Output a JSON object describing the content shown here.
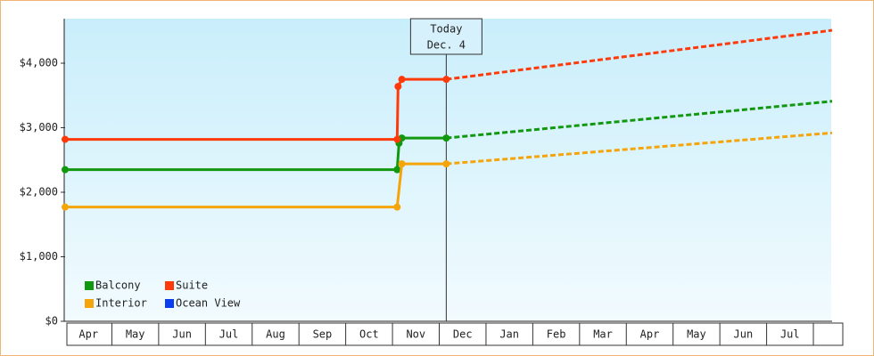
{
  "chart_data": {
    "type": "line",
    "xlim": [
      0,
      16.4
    ],
    "xticks": [
      {
        "value": 0.5,
        "label": "Apr"
      },
      {
        "value": 1.5,
        "label": "May"
      },
      {
        "value": 2.5,
        "label": "Jun"
      },
      {
        "value": 3.5,
        "label": "Jul"
      },
      {
        "value": 4.5,
        "label": "Aug"
      },
      {
        "value": 5.5,
        "label": "Sep"
      },
      {
        "value": 6.5,
        "label": "Oct"
      },
      {
        "value": 7.5,
        "label": "Nov"
      },
      {
        "value": 8.5,
        "label": "Dec"
      },
      {
        "value": 9.5,
        "label": "Jan"
      },
      {
        "value": 10.5,
        "label": "Feb"
      },
      {
        "value": 11.5,
        "label": "Mar"
      },
      {
        "value": 12.5,
        "label": "Apr"
      },
      {
        "value": 13.5,
        "label": "May"
      },
      {
        "value": 14.5,
        "label": "Jun"
      },
      {
        "value": 15.5,
        "label": "Jul"
      }
    ],
    "ylim": [
      0,
      4690
    ],
    "yticks": [
      {
        "value": 0,
        "label": "$0"
      },
      {
        "value": 1000,
        "label": "$1,000"
      },
      {
        "value": 2000,
        "label": "$2,000"
      },
      {
        "value": 3000,
        "label": "$3,000"
      },
      {
        "value": 4000,
        "label": "$4,000"
      }
    ],
    "today": {
      "x": 8.15,
      "label": [
        "Today",
        "Dec. 4"
      ]
    },
    "legend": "lower left",
    "series": [
      {
        "name": "Balcony",
        "color": "#12980f",
        "x": [
          0,
          7.1,
          7.14,
          7.2,
          8.15
        ],
        "values": [
          2350,
          2350,
          2760,
          2840,
          2840
        ],
        "forecast": {
          "x": [
            8.15,
            16.4
          ],
          "values": [
            2840,
            3410
          ]
        }
      },
      {
        "name": "Suite",
        "color": "#ff3a0a",
        "x": [
          0,
          7.1,
          7.12,
          7.2,
          8.15
        ],
        "values": [
          2820,
          2820,
          3640,
          3750,
          3750
        ],
        "forecast": {
          "x": [
            8.15,
            16.4
          ],
          "values": [
            3750,
            4510
          ]
        }
      },
      {
        "name": "Interior",
        "color": "#f5a50a",
        "x": [
          0,
          7.1,
          7.2,
          8.15
        ],
        "values": [
          1770,
          1770,
          2440,
          2440
        ],
        "forecast": {
          "x": [
            8.15,
            16.4
          ],
          "values": [
            2440,
            2920
          ]
        }
      },
      {
        "name": "Ocean View",
        "color": "#0a3cf0",
        "x": [],
        "values": []
      }
    ]
  }
}
